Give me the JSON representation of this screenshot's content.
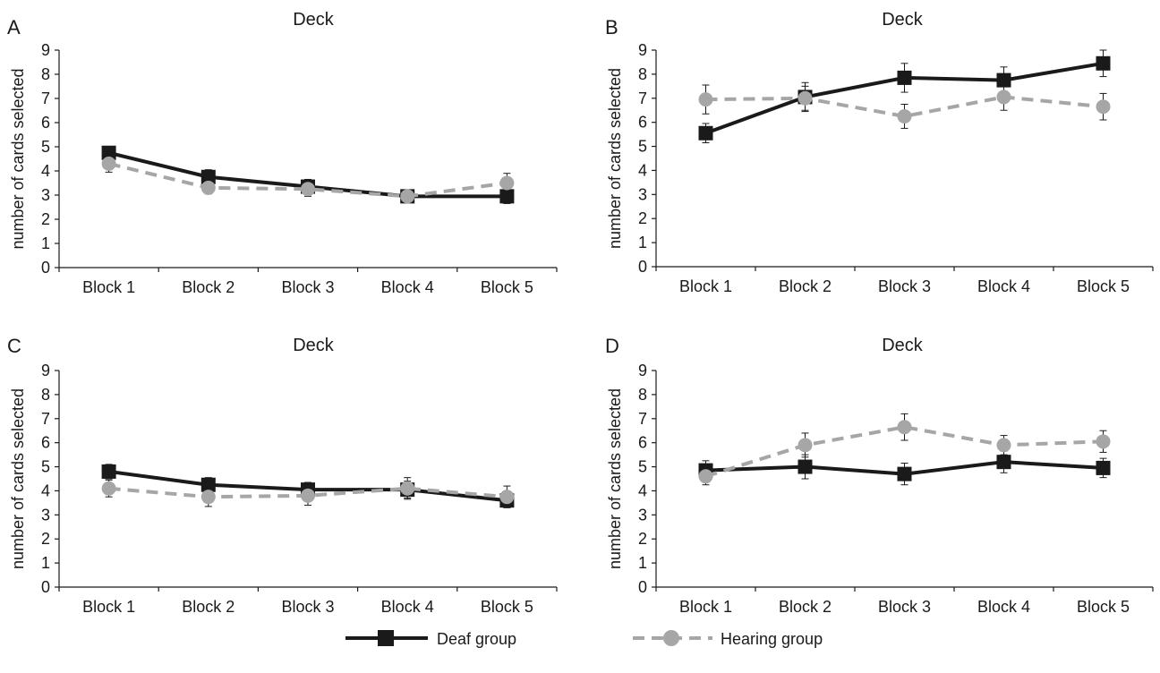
{
  "legend": {
    "deaf": "Deaf group",
    "hearing": "Hearing group"
  },
  "colors": {
    "deaf": "#1a1a1a",
    "hearing": "#a6a6a6"
  },
  "chart_data": [
    {
      "panel": "A",
      "type": "line",
      "title": "Deck",
      "ylabel": "number of cards selected",
      "xlabel": "",
      "categories": [
        "Block 1",
        "Block 2",
        "Block 3",
        "Block 4",
        "Block 5"
      ],
      "ylim": [
        0,
        9
      ],
      "yticks": [
        0,
        1,
        2,
        3,
        4,
        5,
        6,
        7,
        8,
        9
      ],
      "series": [
        {
          "name": "Deaf group",
          "values": [
            4.75,
            3.75,
            3.35,
            2.95,
            2.95
          ],
          "errors": [
            0.25,
            0.3,
            0.3,
            0.25,
            0.3
          ]
        },
        {
          "name": "Hearing group",
          "values": [
            4.3,
            3.3,
            3.25,
            2.95,
            3.5
          ],
          "errors": [
            0.35,
            0.25,
            0.3,
            0.25,
            0.4
          ]
        }
      ]
    },
    {
      "panel": "B",
      "type": "line",
      "title": "Deck",
      "ylabel": "number of cards selected",
      "xlabel": "",
      "categories": [
        "Block 1",
        "Block 2",
        "Block 3",
        "Block 4",
        "Block 5"
      ],
      "ylim": [
        0,
        9
      ],
      "yticks": [
        0,
        1,
        2,
        3,
        4,
        5,
        6,
        7,
        8,
        9
      ],
      "series": [
        {
          "name": "Deaf group",
          "values": [
            5.55,
            7.05,
            7.85,
            7.75,
            8.45
          ],
          "errors": [
            0.4,
            0.6,
            0.6,
            0.55,
            0.55
          ]
        },
        {
          "name": "Hearing group",
          "values": [
            6.95,
            7.0,
            6.25,
            7.05,
            6.65
          ],
          "errors": [
            0.6,
            0.5,
            0.5,
            0.55,
            0.55
          ]
        }
      ]
    },
    {
      "panel": "C",
      "type": "line",
      "title": "Deck",
      "ylabel": "number of cards selected",
      "xlabel": "",
      "categories": [
        "Block 1",
        "Block 2",
        "Block 3",
        "Block 4",
        "Block 5"
      ],
      "ylim": [
        0,
        9
      ],
      "yticks": [
        0,
        1,
        2,
        3,
        4,
        5,
        6,
        7,
        8,
        9
      ],
      "series": [
        {
          "name": "Deaf group",
          "values": [
            4.8,
            4.25,
            4.05,
            4.05,
            3.6
          ],
          "errors": [
            0.3,
            0.3,
            0.3,
            0.35,
            0.3
          ]
        },
        {
          "name": "Hearing group",
          "values": [
            4.1,
            3.75,
            3.8,
            4.1,
            3.75
          ],
          "errors": [
            0.35,
            0.4,
            0.4,
            0.45,
            0.45
          ]
        }
      ]
    },
    {
      "panel": "D",
      "type": "line",
      "title": "Deck",
      "ylabel": "number of cards selected",
      "xlabel": "",
      "categories": [
        "Block 1",
        "Block 2",
        "Block 3",
        "Block 4",
        "Block 5"
      ],
      "ylim": [
        0,
        9
      ],
      "yticks": [
        0,
        1,
        2,
        3,
        4,
        5,
        6,
        7,
        8,
        9
      ],
      "series": [
        {
          "name": "Deaf group",
          "values": [
            4.85,
            5.0,
            4.7,
            5.2,
            4.95
          ],
          "errors": [
            0.4,
            0.5,
            0.45,
            0.45,
            0.4
          ]
        },
        {
          "name": "Hearing group",
          "values": [
            4.6,
            5.9,
            6.65,
            5.9,
            6.05
          ],
          "errors": [
            0.35,
            0.5,
            0.55,
            0.4,
            0.45
          ]
        }
      ]
    }
  ]
}
